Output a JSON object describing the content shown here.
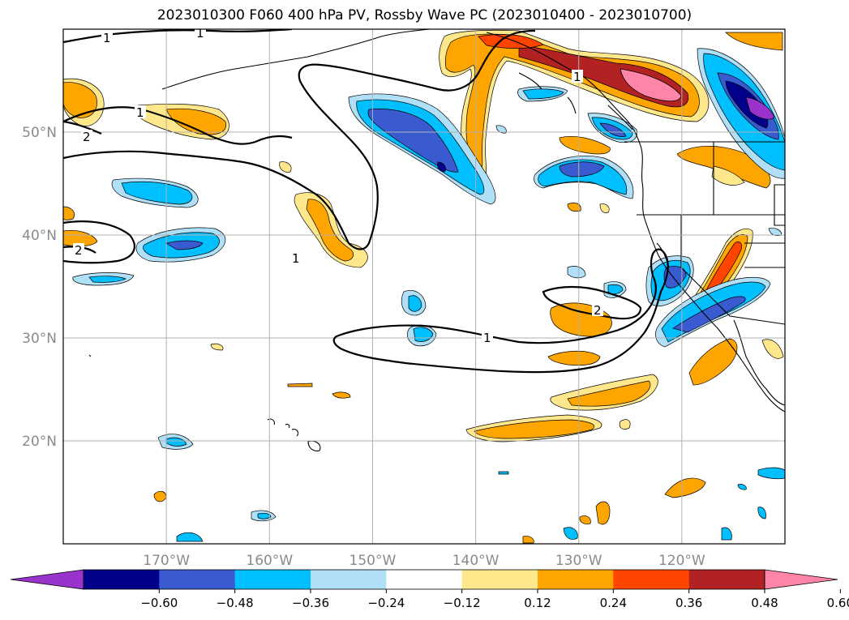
{
  "title": "2023010300 F060 400 hPa PV, Rossby Wave PC (2023010400 - 2023010700)",
  "axes": {
    "lon_ticks": [
      {
        "lon": -170,
        "label": "170°W"
      },
      {
        "lon": -160,
        "label": "160°W"
      },
      {
        "lon": -150,
        "label": "150°W"
      },
      {
        "lon": -140,
        "label": "140°W"
      },
      {
        "lon": -130,
        "label": "130°W"
      },
      {
        "lon": -120,
        "label": "120°W"
      }
    ],
    "lat_ticks": [
      {
        "lat": 50,
        "label": "50°N"
      },
      {
        "lat": 40,
        "label": "40°N"
      },
      {
        "lat": 30,
        "label": "30°N"
      },
      {
        "lat": 20,
        "label": "20°N"
      }
    ],
    "lon_range": [
      -180,
      -110
    ],
    "lat_range": [
      10,
      60
    ],
    "grid": true
  },
  "colorbar": {
    "levels": [
      "−0.60",
      "−0.48",
      "−0.36",
      "−0.24",
      "−0.12",
      "0.12",
      "0.24",
      "0.36",
      "0.48",
      "0.60"
    ],
    "colors": [
      "#9933cc",
      "#00008b",
      "#3a5bd0",
      "#00bfff",
      "#afe0f8",
      "#ffffff",
      "#ffe88c",
      "#ffa500",
      "#ff4500",
      "#b22222",
      "#ff85a8"
    ],
    "extend": "both"
  },
  "contour_labels": [
    "1",
    "1",
    "1",
    "1",
    "1",
    "1",
    "2",
    "2",
    "2"
  ]
}
